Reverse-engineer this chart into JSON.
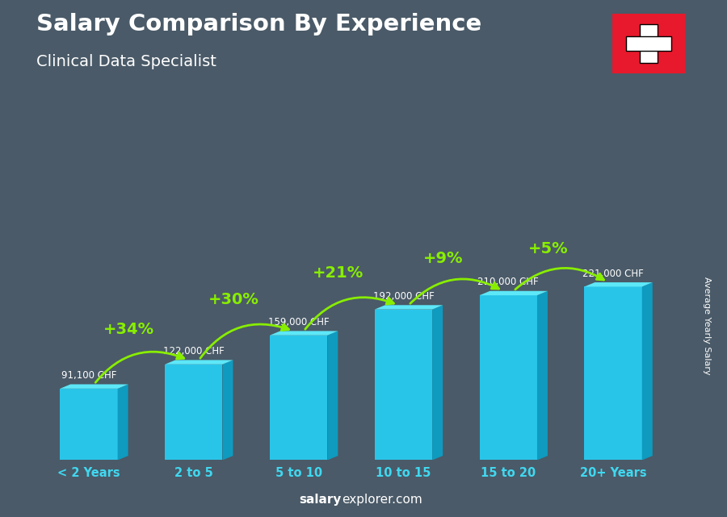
{
  "title": "Salary Comparison By Experience",
  "subtitle": "Clinical Data Specialist",
  "categories": [
    "< 2 Years",
    "2 to 5",
    "5 to 10",
    "10 to 15",
    "15 to 20",
    "20+ Years"
  ],
  "values": [
    91100,
    122000,
    159000,
    192000,
    210000,
    221000
  ],
  "salary_labels": [
    "91,100 CHF",
    "122,000 CHF",
    "159,000 CHF",
    "192,000 CHF",
    "210,000 CHF",
    "221,000 CHF"
  ],
  "pct_labels": [
    "+34%",
    "+30%",
    "+21%",
    "+9%",
    "+5%"
  ],
  "bar_color_front": "#29c5e8",
  "bar_color_top": "#5de8f8",
  "bar_color_side": "#0e9bbf",
  "background_color": "#3d4d5c",
  "title_color": "#ffffff",
  "subtitle_color": "#ffffff",
  "salary_label_color": "#ffffff",
  "pct_color": "#88ee00",
  "xtick_color": "#40d8f0",
  "ylabel": "Average Yearly Salary",
  "footer_salary": "salary",
  "footer_rest": "explorer.com",
  "swiss_flag_red": "#e8192c",
  "arrow_rad": -0.4
}
